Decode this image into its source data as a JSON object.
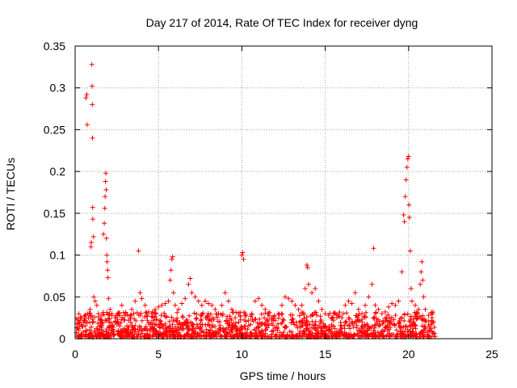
{
  "chart_data": {
    "type": "scatter",
    "title": "Day 217 of 2014, Rate Of TEC Index for receiver dyng",
    "xlabel": "GPS time / hours",
    "ylabel": "ROTI / TECUs",
    "xlim": [
      0,
      25
    ],
    "ylim": [
      0,
      0.35
    ],
    "xticks": [
      0,
      5,
      10,
      15,
      20,
      25
    ],
    "xtick_labels": [
      "0",
      "5",
      "10",
      "15",
      "20",
      "25"
    ],
    "yticks": [
      0,
      0.05,
      0.1,
      0.15,
      0.2,
      0.25,
      0.3,
      0.35
    ],
    "ytick_labels": [
      "0",
      "0.05",
      "0.1",
      "0.15",
      "0.2",
      "0.25",
      "0.3",
      "0.35"
    ],
    "grid": true,
    "marker": "+",
    "color": "#ff0000",
    "series": [
      {
        "name": "ROTI",
        "points": [
          [
            0.1,
            0.018
          ],
          [
            0.2,
            0.012
          ],
          [
            0.3,
            0.022
          ],
          [
            0.4,
            0.015
          ],
          [
            0.5,
            0.02
          ],
          [
            0.6,
            0.028
          ],
          [
            0.65,
            0.288
          ],
          [
            0.7,
            0.292
          ],
          [
            0.72,
            0.256
          ],
          [
            0.8,
            0.025
          ],
          [
            0.9,
            0.035
          ],
          [
            0.95,
            0.11
          ],
          [
            0.97,
            0.115
          ],
          [
            1.0,
            0.328
          ],
          [
            1.02,
            0.302
          ],
          [
            1.03,
            0.28
          ],
          [
            1.04,
            0.24
          ],
          [
            1.05,
            0.157
          ],
          [
            1.06,
            0.143
          ],
          [
            1.1,
            0.122
          ],
          [
            1.12,
            0.05
          ],
          [
            1.2,
            0.045
          ],
          [
            1.3,
            0.04
          ],
          [
            1.4,
            0.03
          ],
          [
            1.5,
            0.022
          ],
          [
            1.6,
            0.028
          ],
          [
            1.7,
            0.125
          ],
          [
            1.75,
            0.138
          ],
          [
            1.78,
            0.156
          ],
          [
            1.8,
            0.17
          ],
          [
            1.82,
            0.188
          ],
          [
            1.84,
            0.198
          ],
          [
            1.86,
            0.178
          ],
          [
            1.88,
            0.12
          ],
          [
            1.9,
            0.1
          ],
          [
            1.92,
            0.092
          ],
          [
            1.95,
            0.082
          ],
          [
            1.97,
            0.073
          ],
          [
            2.0,
            0.048
          ],
          [
            2.1,
            0.035
          ],
          [
            2.2,
            0.03
          ],
          [
            2.4,
            0.025
          ],
          [
            2.6,
            0.03
          ],
          [
            2.8,
            0.04
          ],
          [
            3.0,
            0.028
          ],
          [
            3.2,
            0.022
          ],
          [
            3.4,
            0.035
          ],
          [
            3.6,
            0.045
          ],
          [
            3.8,
            0.105
          ],
          [
            3.9,
            0.055
          ],
          [
            4.0,
            0.048
          ],
          [
            4.2,
            0.04
          ],
          [
            4.4,
            0.032
          ],
          [
            4.6,
            0.03
          ],
          [
            4.8,
            0.035
          ],
          [
            5.0,
            0.038
          ],
          [
            5.2,
            0.04
          ],
          [
            5.4,
            0.042
          ],
          [
            5.6,
            0.045
          ],
          [
            5.7,
            0.07
          ],
          [
            5.75,
            0.082
          ],
          [
            5.8,
            0.095
          ],
          [
            5.85,
            0.098
          ],
          [
            5.9,
            0.055
          ],
          [
            6.0,
            0.04
          ],
          [
            6.2,
            0.035
          ],
          [
            6.4,
            0.042
          ],
          [
            6.6,
            0.048
          ],
          [
            6.8,
            0.065
          ],
          [
            6.9,
            0.072
          ],
          [
            7.0,
            0.055
          ],
          [
            7.2,
            0.05
          ],
          [
            7.4,
            0.045
          ],
          [
            7.6,
            0.04
          ],
          [
            7.8,
            0.045
          ],
          [
            8.0,
            0.042
          ],
          [
            8.2,
            0.04
          ],
          [
            8.4,
            0.035
          ],
          [
            8.6,
            0.03
          ],
          [
            8.8,
            0.04
          ],
          [
            9.0,
            0.055
          ],
          [
            9.2,
            0.045
          ],
          [
            9.4,
            0.035
          ],
          [
            9.6,
            0.025
          ],
          [
            9.8,
            0.03
          ],
          [
            10.0,
            0.1
          ],
          [
            10.05,
            0.103
          ],
          [
            10.1,
            0.095
          ],
          [
            10.2,
            0.028
          ],
          [
            10.4,
            0.022
          ],
          [
            10.6,
            0.03
          ],
          [
            10.8,
            0.045
          ],
          [
            11.0,
            0.048
          ],
          [
            11.2,
            0.04
          ],
          [
            11.4,
            0.035
          ],
          [
            11.6,
            0.03
          ],
          [
            11.8,
            0.025
          ],
          [
            12.0,
            0.022
          ],
          [
            12.2,
            0.03
          ],
          [
            12.4,
            0.04
          ],
          [
            12.6,
            0.05
          ],
          [
            12.8,
            0.048
          ],
          [
            13.0,
            0.045
          ],
          [
            13.2,
            0.04
          ],
          [
            13.4,
            0.035
          ],
          [
            13.6,
            0.04
          ],
          [
            13.8,
            0.06
          ],
          [
            13.9,
            0.088
          ],
          [
            13.95,
            0.085
          ],
          [
            14.0,
            0.065
          ],
          [
            14.2,
            0.055
          ],
          [
            14.4,
            0.06
          ],
          [
            14.6,
            0.045
          ],
          [
            14.8,
            0.035
          ],
          [
            15.0,
            0.03
          ],
          [
            15.2,
            0.028
          ],
          [
            15.4,
            0.025
          ],
          [
            15.6,
            0.03
          ],
          [
            15.8,
            0.028
          ],
          [
            16.0,
            0.025
          ],
          [
            16.2,
            0.04
          ],
          [
            16.4,
            0.045
          ],
          [
            16.6,
            0.042
          ],
          [
            16.8,
            0.055
          ],
          [
            17.0,
            0.035
          ],
          [
            17.2,
            0.03
          ],
          [
            17.4,
            0.04
          ],
          [
            17.6,
            0.05
          ],
          [
            17.8,
            0.065
          ],
          [
            17.9,
            0.108
          ],
          [
            18.0,
            0.04
          ],
          [
            18.2,
            0.035
          ],
          [
            18.4,
            0.03
          ],
          [
            18.6,
            0.032
          ],
          [
            18.8,
            0.038
          ],
          [
            19.0,
            0.042
          ],
          [
            19.2,
            0.04
          ],
          [
            19.4,
            0.045
          ],
          [
            19.6,
            0.08
          ],
          [
            19.7,
            0.148
          ],
          [
            19.75,
            0.14
          ],
          [
            19.8,
            0.17
          ],
          [
            19.85,
            0.19
          ],
          [
            19.9,
            0.205
          ],
          [
            19.95,
            0.215
          ],
          [
            20.0,
            0.218
          ],
          [
            20.02,
            0.16
          ],
          [
            20.05,
            0.145
          ],
          [
            20.1,
            0.105
          ],
          [
            20.15,
            0.06
          ],
          [
            20.2,
            0.045
          ],
          [
            20.4,
            0.04
          ],
          [
            20.6,
            0.035
          ],
          [
            20.7,
            0.065
          ],
          [
            20.75,
            0.08
          ],
          [
            20.8,
            0.092
          ],
          [
            20.85,
            0.07
          ],
          [
            20.9,
            0.05
          ],
          [
            21.0,
            0.035
          ],
          [
            21.2,
            0.028
          ],
          [
            21.4,
            0.025
          ],
          [
            21.5,
            0.02
          ]
        ]
      }
    ],
    "dense_band": {
      "x_range": [
        0,
        21.6
      ],
      "y_floor": 0.002,
      "description_values": [
        0.01,
        0.03
      ]
    }
  }
}
